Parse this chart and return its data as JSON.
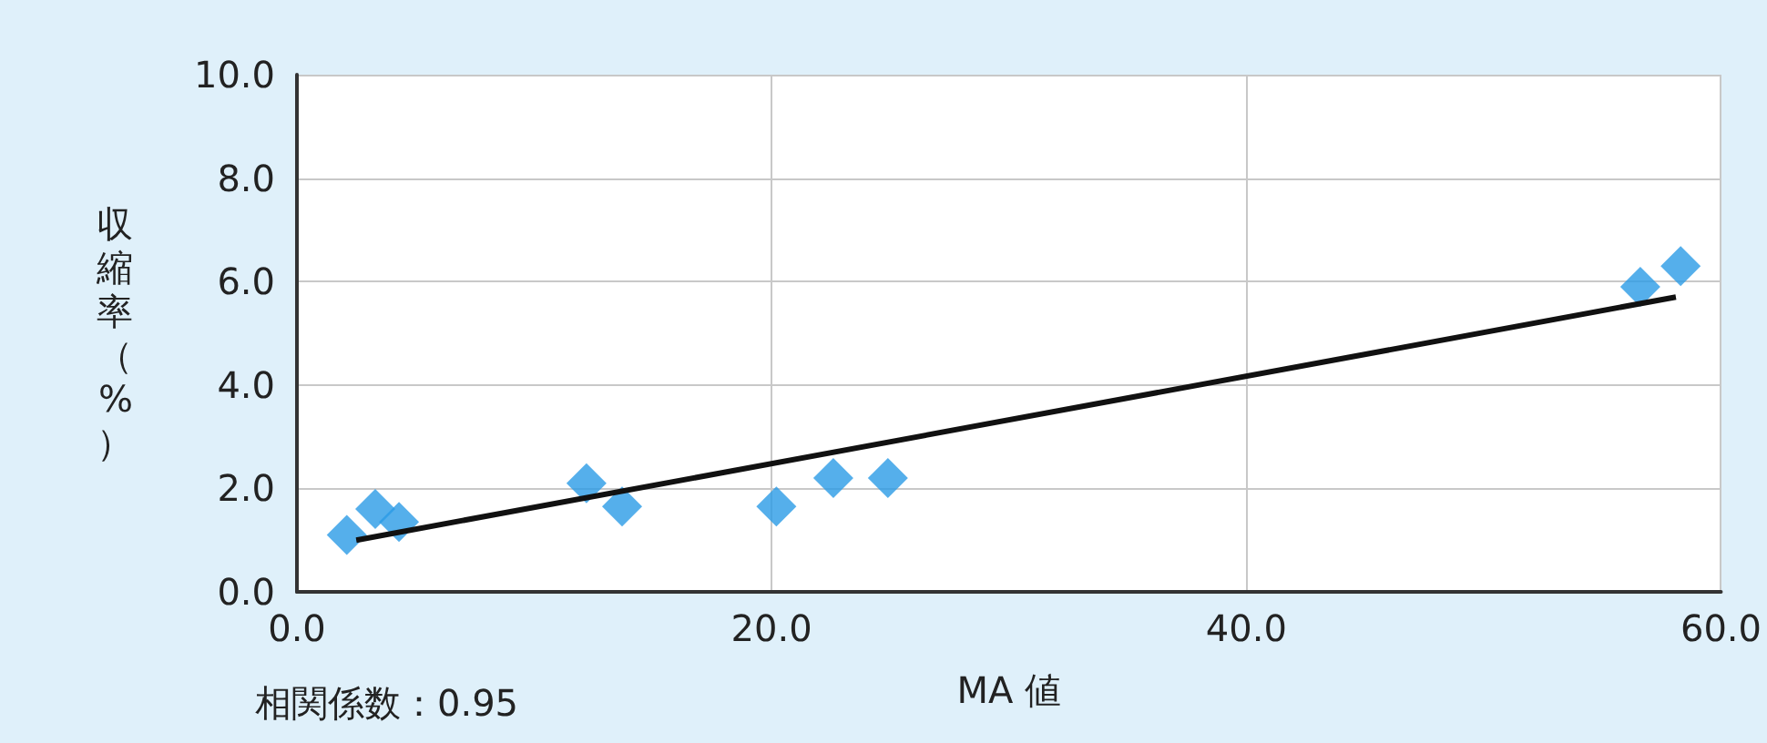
{
  "chart_data": {
    "type": "scatter",
    "xlabel": "MA 値",
    "ylabel": "収縮率（%）",
    "annotations": [
      "相関係数：0.95"
    ],
    "xlim": [
      0,
      60
    ],
    "ylim": [
      0,
      10
    ],
    "xticks": [
      {
        "value": 0,
        "label": "0.0"
      },
      {
        "value": 20,
        "label": "20.0"
      },
      {
        "value": 40,
        "label": "40.0"
      },
      {
        "value": 60,
        "label": "60.0"
      }
    ],
    "yticks": [
      {
        "value": 0,
        "label": "0.0"
      },
      {
        "value": 2,
        "label": "2.0"
      },
      {
        "value": 4,
        "label": "4.0"
      },
      {
        "value": 6,
        "label": "6.0"
      },
      {
        "value": 8,
        "label": "8.0"
      },
      {
        "value": 10,
        "label": "10.0"
      }
    ],
    "grid": true,
    "marker": "diamond",
    "series": [
      {
        "color": "#2b9be6",
        "x": [
          2.1,
          3.3,
          4.3,
          12.2,
          13.7,
          20.2,
          22.6,
          24.9,
          56.6,
          58.3
        ],
        "values": [
          1.1,
          1.6,
          1.35,
          2.1,
          1.65,
          1.65,
          2.2,
          2.2,
          5.9,
          6.3
        ]
      },
      {
        "type": "line",
        "color": "#111111",
        "marker": "none",
        "x": [
          2.5,
          58.1
        ],
        "values": [
          1.0,
          5.7
        ]
      }
    ]
  }
}
